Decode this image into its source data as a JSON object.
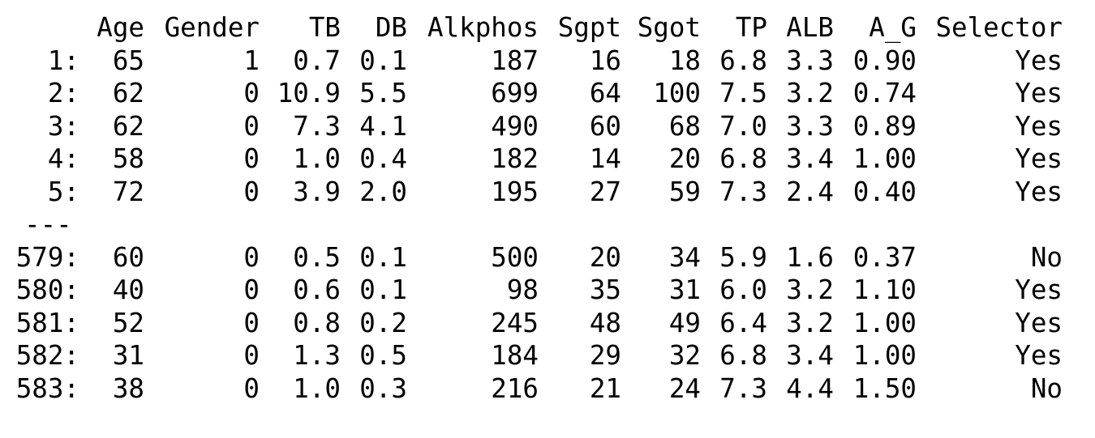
{
  "table": {
    "headers": [
      "Age",
      "Gender",
      "TB",
      "DB",
      "Alkphos",
      "Sgpt",
      "Sgot",
      "TP",
      "ALB",
      "A_G",
      "Selector"
    ],
    "top_rows": [
      {
        "index": "1:",
        "cells": [
          "65",
          "1",
          "0.7",
          "0.1",
          "187",
          "16",
          "18",
          "6.8",
          "3.3",
          "0.90",
          "Yes"
        ]
      },
      {
        "index": "2:",
        "cells": [
          "62",
          "0",
          "10.9",
          "5.5",
          "699",
          "64",
          "100",
          "7.5",
          "3.2",
          "0.74",
          "Yes"
        ]
      },
      {
        "index": "3:",
        "cells": [
          "62",
          "0",
          "7.3",
          "4.1",
          "490",
          "60",
          "68",
          "7.0",
          "3.3",
          "0.89",
          "Yes"
        ]
      },
      {
        "index": "4:",
        "cells": [
          "58",
          "0",
          "1.0",
          "0.4",
          "182",
          "14",
          "20",
          "6.8",
          "3.4",
          "1.00",
          "Yes"
        ]
      },
      {
        "index": "5:",
        "cells": [
          "72",
          "0",
          "3.9",
          "2.0",
          "195",
          "27",
          "59",
          "7.3",
          "2.4",
          "0.40",
          "Yes"
        ]
      }
    ],
    "separator": "---",
    "bottom_rows": [
      {
        "index": "579:",
        "cells": [
          "60",
          "0",
          "0.5",
          "0.1",
          "500",
          "20",
          "34",
          "5.9",
          "1.6",
          "0.37",
          "No"
        ]
      },
      {
        "index": "580:",
        "cells": [
          "40",
          "0",
          "0.6",
          "0.1",
          "98",
          "35",
          "31",
          "6.0",
          "3.2",
          "1.10",
          "Yes"
        ]
      },
      {
        "index": "581:",
        "cells": [
          "52",
          "0",
          "0.8",
          "0.2",
          "245",
          "48",
          "49",
          "6.4",
          "3.2",
          "1.00",
          "Yes"
        ]
      },
      {
        "index": "582:",
        "cells": [
          "31",
          "0",
          "1.3",
          "0.5",
          "184",
          "29",
          "32",
          "6.8",
          "3.4",
          "1.00",
          "Yes"
        ]
      },
      {
        "index": "583:",
        "cells": [
          "38",
          "0",
          "1.0",
          "0.3",
          "216",
          "21",
          "24",
          "7.3",
          "4.4",
          "1.50",
          "No"
        ]
      }
    ]
  }
}
